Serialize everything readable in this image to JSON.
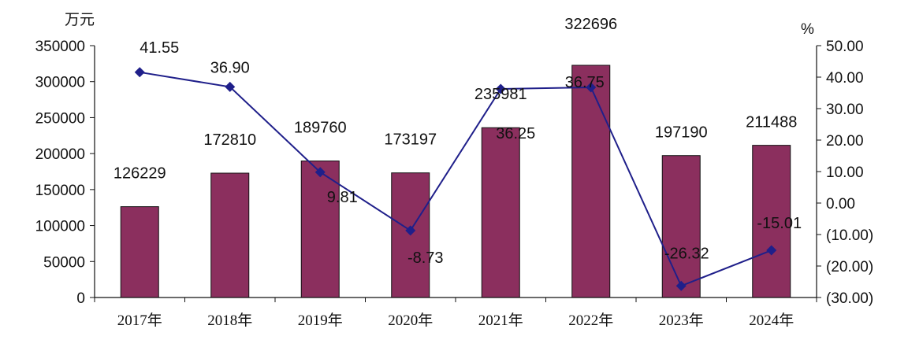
{
  "chart_data": {
    "type": "bar",
    "title": "",
    "left_axis_unit": "万元",
    "right_axis_unit": "%",
    "categories": [
      "2017年",
      "2018年",
      "2019年",
      "2020年",
      "2021年",
      "2022年",
      "2023年",
      "2024年"
    ],
    "series": [
      {
        "kind": "bar",
        "axis": "left",
        "color": "#8B2F5E",
        "values": [
          126229,
          172810,
          189760,
          173197,
          235981,
          322696,
          197190,
          211488
        ],
        "labels": [
          "126229",
          "172810",
          "189760",
          "173197",
          "235981",
          "322696",
          "197190",
          "211488"
        ]
      },
      {
        "kind": "line",
        "axis": "right",
        "color": "#1F1F8A",
        "values": [
          41.55,
          36.9,
          9.81,
          -8.73,
          36.25,
          36.75,
          -26.32,
          -15.01
        ],
        "labels": [
          "41.55",
          "36.90",
          "9.81",
          "-8.73",
          "36.25",
          "36.75",
          "-26.32",
          "-15.01"
        ]
      }
    ],
    "left_axis": {
      "ylim": [
        0,
        350000
      ],
      "ticks": [
        0,
        50000,
        100000,
        150000,
        200000,
        250000,
        300000,
        350000
      ],
      "tick_labels": [
        "0",
        "50000",
        "100000",
        "150000",
        "200000",
        "250000",
        "300000",
        "350000"
      ]
    },
    "right_axis": {
      "ylim": [
        -30,
        50
      ],
      "ticks": [
        50,
        40,
        30,
        20,
        10,
        0,
        -10,
        -20,
        -30
      ],
      "tick_labels": [
        "50.00",
        "40.00",
        "30.00",
        "20.00",
        "10.00",
        "0.00",
        "(10.00)",
        "(20.00)",
        "(30.00)"
      ],
      "negative_color": "#E8141B"
    },
    "grid": false,
    "legend": "none"
  }
}
